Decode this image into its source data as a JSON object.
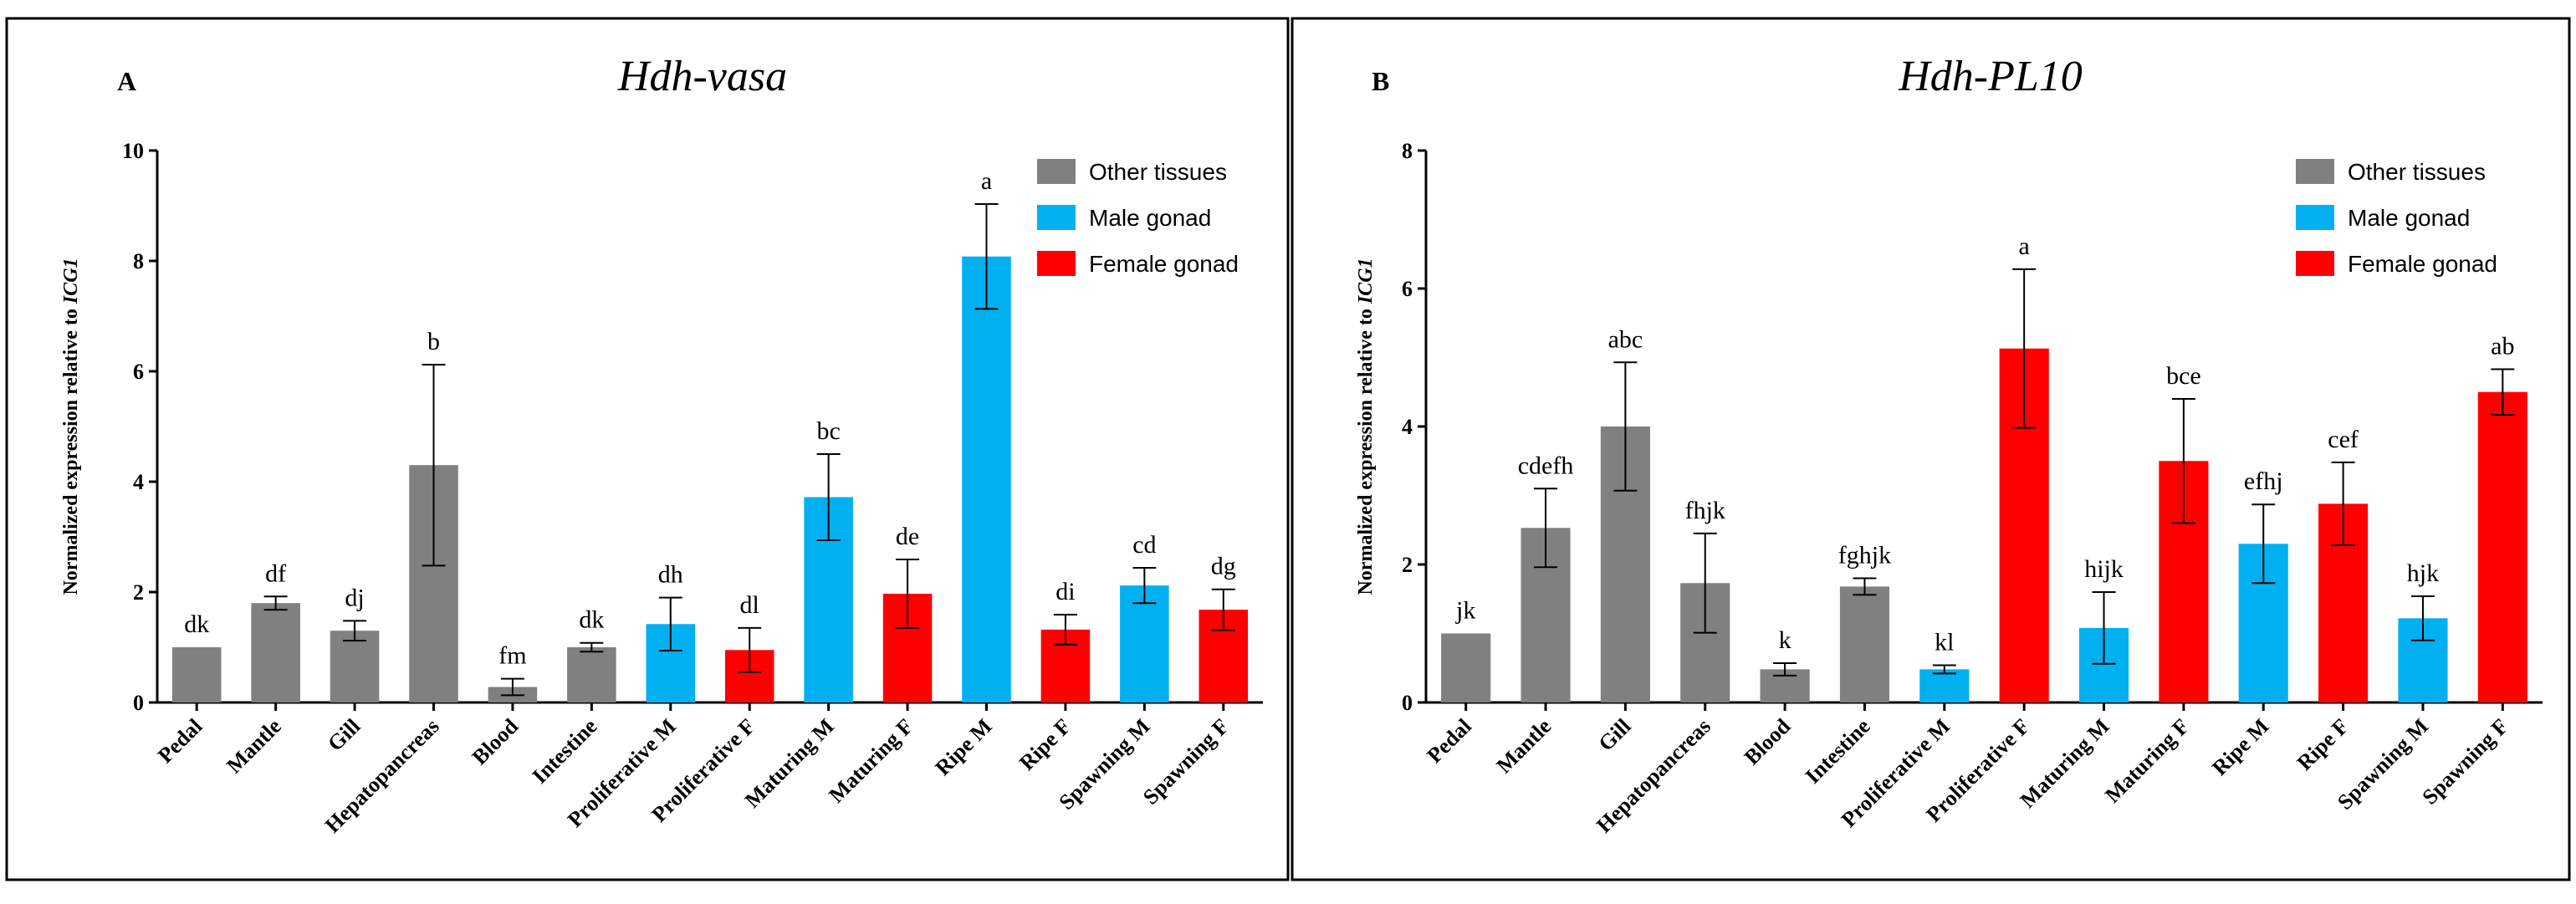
{
  "colors": {
    "other": "#808080",
    "male": "#00b0f0",
    "female": "#ff0000"
  },
  "chart_data": [
    {
      "type": "bar",
      "panel": "A",
      "title": "Hdh-vasa",
      "ylabel": "Normalized expression relative to ICG1",
      "ylabel_prefix": "Normalized expression relative to ",
      "ylabel_gene": "ICG1",
      "xlabel": "",
      "ylim": [
        0,
        10
      ],
      "yticks": [
        "0",
        "2",
        "4",
        "6",
        "8",
        "10"
      ],
      "legend": [
        {
          "label": "Other tissues",
          "group": "other"
        },
        {
          "label": "Male gonad",
          "group": "male"
        },
        {
          "label": "Female gonad",
          "group": "female"
        }
      ],
      "legend_position": "top-right",
      "categories": [
        "Pedal",
        "Mantle",
        "Gill",
        "Hepatopancreas",
        "Blood",
        "Intestine",
        "Proliferative M",
        "Proliferative F",
        "Maturing M",
        "Maturing F",
        "Ripe M",
        "Ripe F",
        "Spawning M",
        "Spawning F"
      ],
      "groups": [
        "other",
        "other",
        "other",
        "other",
        "other",
        "other",
        "male",
        "female",
        "male",
        "female",
        "male",
        "female",
        "male",
        "female"
      ],
      "values": [
        1.0,
        1.8,
        1.3,
        4.3,
        0.28,
        1.0,
        1.42,
        0.95,
        3.72,
        1.97,
        8.08,
        1.32,
        2.12,
        1.68
      ],
      "errors": [
        0.0,
        0.12,
        0.18,
        1.82,
        0.15,
        0.08,
        0.48,
        0.4,
        0.78,
        0.62,
        0.95,
        0.27,
        0.32,
        0.37
      ],
      "significance": [
        "dk",
        "df",
        "dj",
        "b",
        "fm",
        "dk",
        "dh",
        "dl",
        "bc",
        "de",
        "a",
        "di",
        "cd",
        "dg"
      ]
    },
    {
      "type": "bar",
      "panel": "B",
      "title": "Hdh-PL10",
      "ylabel": "Normalized expression relative to ICG1",
      "ylabel_prefix": "Normalized expression relative to ",
      "ylabel_gene": "ICG1",
      "xlabel": "",
      "ylim": [
        0,
        8
      ],
      "yticks": [
        "0",
        "2",
        "4",
        "6",
        "8"
      ],
      "legend": [
        {
          "label": "Other tissues",
          "group": "other"
        },
        {
          "label": "Male gonad",
          "group": "male"
        },
        {
          "label": "Female gonad",
          "group": "female"
        }
      ],
      "legend_position": "top-right",
      "categories": [
        "Pedal",
        "Mantle",
        "Gill",
        "Hepatopancreas",
        "Blood",
        "Intestine",
        "Proliferative M",
        "Proliferative F",
        "Maturing M",
        "Maturing F",
        "Ripe M",
        "Ripe F",
        "Spawning M",
        "Spawning F"
      ],
      "groups": [
        "other",
        "other",
        "other",
        "other",
        "other",
        "other",
        "male",
        "female",
        "male",
        "female",
        "male",
        "female",
        "male",
        "female"
      ],
      "values": [
        1.0,
        2.53,
        4.0,
        1.73,
        0.48,
        1.68,
        0.48,
        5.13,
        1.08,
        3.5,
        2.3,
        2.88,
        1.22,
        4.5
      ],
      "errors": [
        0.0,
        0.57,
        0.93,
        0.72,
        0.09,
        0.12,
        0.06,
        1.15,
        0.52,
        0.9,
        0.57,
        0.6,
        0.32,
        0.33
      ],
      "significance": [
        "jk",
        "cdefh",
        "abc",
        "fhjk",
        "k",
        "fghjk",
        "kl",
        "a",
        "hijk",
        "bce",
        "efhj",
        "cef",
        "hjk",
        "ab"
      ]
    }
  ]
}
